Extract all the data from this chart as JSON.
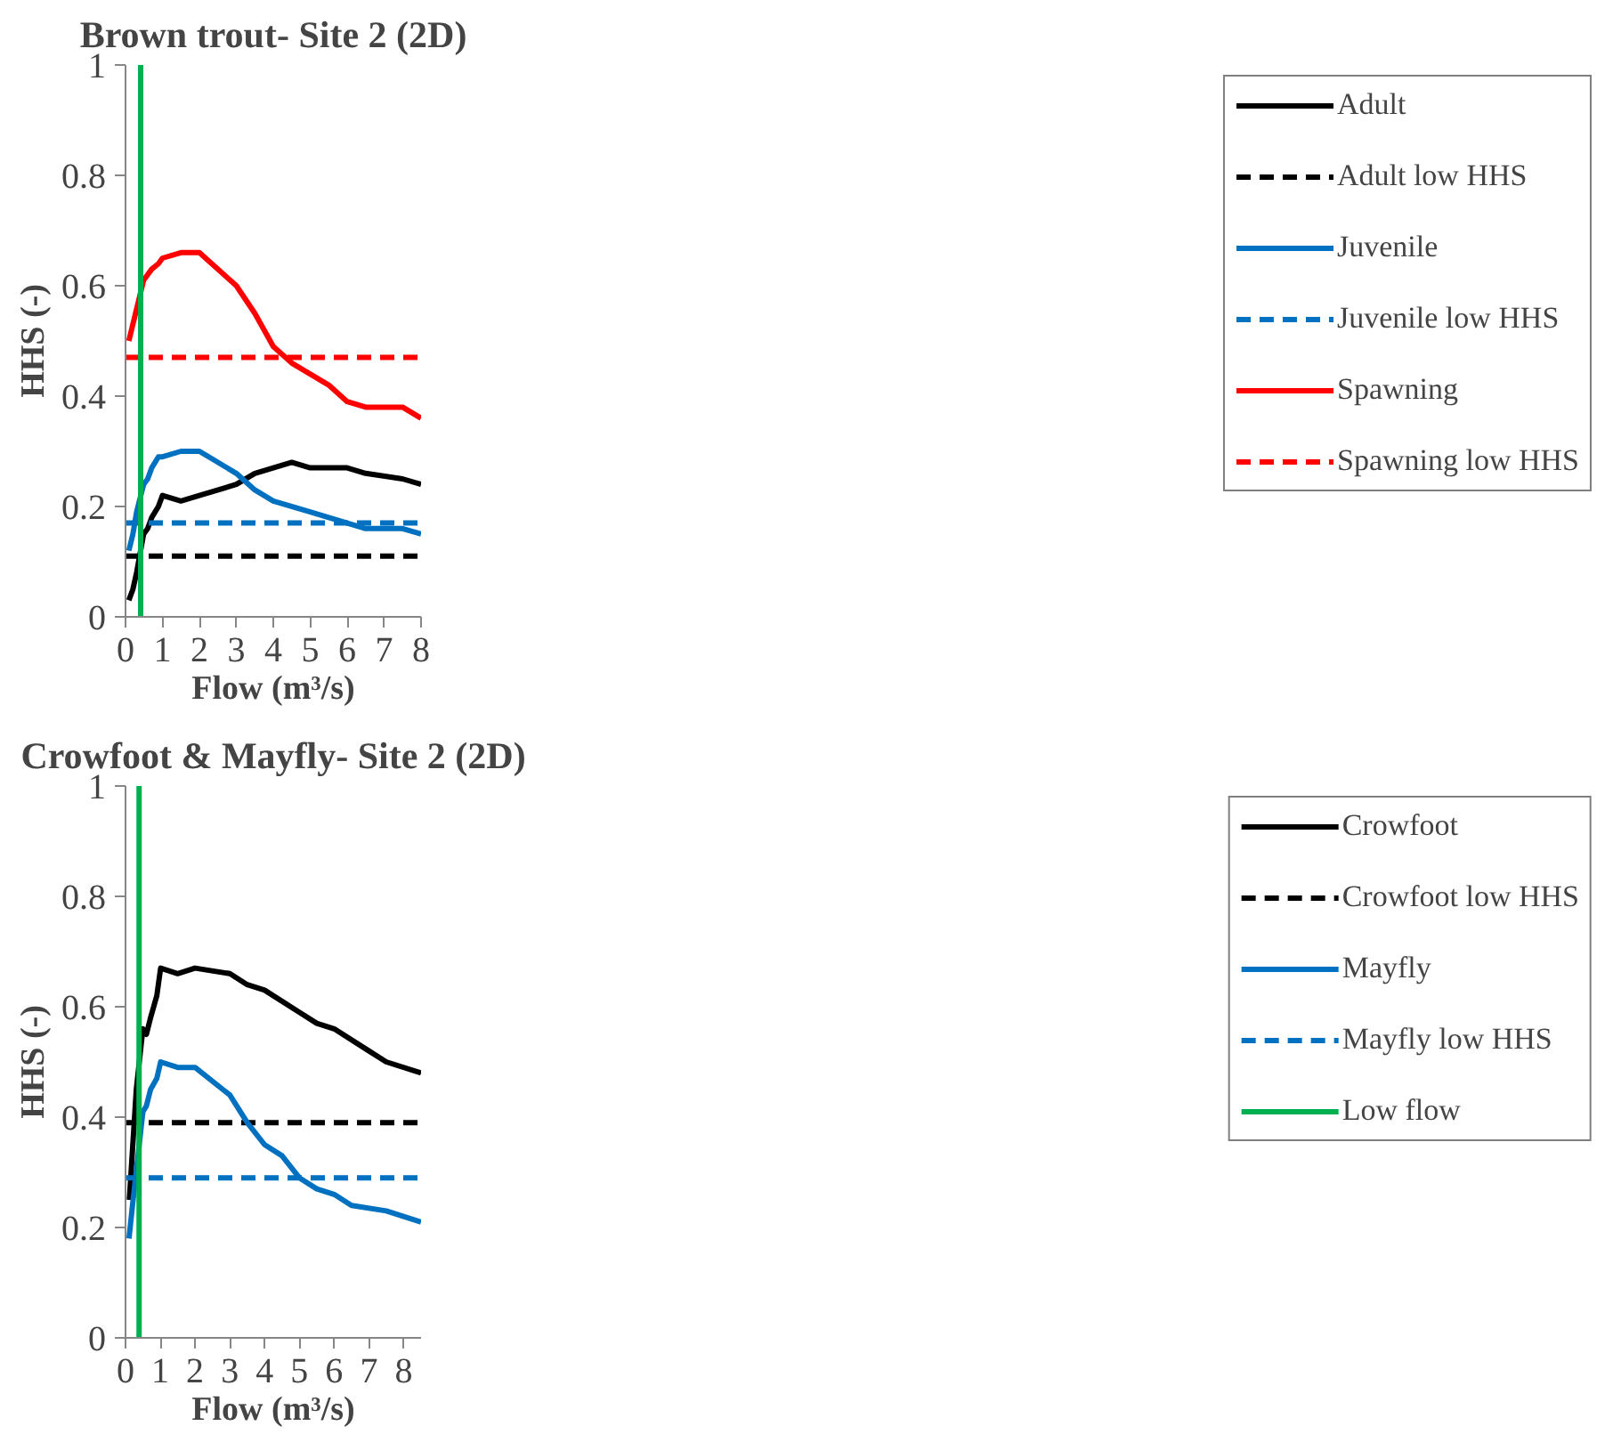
{
  "chart_data": [
    {
      "type": "line",
      "title": "Brown trout- Site 2 (2D)",
      "xlabel": "Flow (m³/s)",
      "ylabel": "HHS (-)",
      "xlim": [
        0,
        8
      ],
      "xticks": [
        0,
        1,
        2,
        3,
        4,
        5,
        6,
        7,
        8
      ],
      "ylim": [
        0,
        1
      ],
      "yticks": [
        0,
        0.2,
        0.4,
        0.6,
        0.8,
        1
      ],
      "grid": false,
      "legend": "right",
      "series": [
        {
          "name": "Adult",
          "color": "#000000",
          "line_style": "solid",
          "x": [
            0.09,
            0.2,
            0.3,
            0.49,
            0.6,
            0.71,
            0.89,
            1.0,
            1.5,
            2.0,
            3.0,
            3.5,
            4.0,
            4.5,
            5.0,
            6.0,
            6.5,
            7.5,
            8.0
          ],
          "values": [
            0.03,
            0.05,
            0.08,
            0.15,
            0.16,
            0.18,
            0.2,
            0.22,
            0.21,
            0.22,
            0.24,
            0.26,
            0.27,
            0.28,
            0.27,
            0.27,
            0.26,
            0.25,
            0.24
          ]
        },
        {
          "name": "Adult low HHS",
          "color": "#000000",
          "line_style": "dashed",
          "x": [
            0,
            8
          ],
          "values": [
            0.11,
            0.11
          ]
        },
        {
          "name": "Juvenile",
          "color": "#0070c0",
          "line_style": "solid",
          "x": [
            0.09,
            0.2,
            0.3,
            0.49,
            0.6,
            0.71,
            0.89,
            1.0,
            1.5,
            2.0,
            3.0,
            3.5,
            4.0,
            5.0,
            6.0,
            6.5,
            7.5,
            8.0
          ],
          "values": [
            0.12,
            0.15,
            0.19,
            0.24,
            0.25,
            0.27,
            0.29,
            0.29,
            0.3,
            0.3,
            0.26,
            0.23,
            0.21,
            0.19,
            0.17,
            0.16,
            0.16,
            0.15
          ]
        },
        {
          "name": "Juvenile low HHS",
          "color": "#0070c0",
          "line_style": "dashed",
          "x": [
            0,
            8
          ],
          "values": [
            0.17,
            0.17
          ]
        },
        {
          "name": "Spawning",
          "color": "#ff0000",
          "line_style": "solid",
          "x": [
            0.09,
            0.49,
            0.71,
            0.89,
            1.0,
            1.5,
            2.0,
            3.0,
            3.5,
            4.0,
            4.5,
            5.5,
            6.0,
            6.5,
            7.5,
            8.0
          ],
          "values": [
            0.5,
            0.61,
            0.63,
            0.64,
            0.65,
            0.66,
            0.66,
            0.6,
            0.55,
            0.49,
            0.46,
            0.42,
            0.39,
            0.38,
            0.38,
            0.36
          ]
        },
        {
          "name": "Spawning low HHS",
          "color": "#ff0000",
          "line_style": "dashed",
          "x": [
            0,
            8
          ],
          "values": [
            0.47,
            0.47
          ]
        },
        {
          "color": "#00b050",
          "line_style": "solid",
          "x": [
            0.41,
            0.41
          ],
          "values": [
            0,
            1
          ]
        }
      ]
    },
    {
      "type": "line",
      "title": "Crowfoot & Mayfly- Site 2 (2D)",
      "xlabel": "Flow (m³/s)",
      "ylabel": "HHS (-)",
      "xlim": [
        0,
        8.5
      ],
      "xticks": [
        0,
        1,
        2,
        3,
        4,
        5,
        6,
        7,
        8
      ],
      "ylim": [
        0,
        1
      ],
      "yticks": [
        0,
        0.2,
        0.4,
        0.6,
        0.8,
        1
      ],
      "grid": false,
      "legend": "right",
      "series": [
        {
          "name": "Crowfoot",
          "color": "#000000",
          "line_style": "solid",
          "x": [
            0.11,
            0.2,
            0.31,
            0.5,
            0.6,
            0.72,
            0.9,
            1.01,
            1.5,
            2.0,
            3.0,
            3.5,
            4.0,
            5.0,
            5.5,
            6.0,
            7.0,
            7.5,
            8.5
          ],
          "values": [
            0.25,
            0.34,
            0.45,
            0.56,
            0.55,
            0.58,
            0.62,
            0.67,
            0.66,
            0.67,
            0.66,
            0.64,
            0.63,
            0.59,
            0.57,
            0.56,
            0.52,
            0.5,
            0.48
          ]
        },
        {
          "name": "Crowfoot low HHS",
          "color": "#000000",
          "line_style": "dashed",
          "x": [
            0,
            8.5
          ],
          "values": [
            0.39,
            0.39
          ]
        },
        {
          "name": "Mayfly",
          "color": "#0070c0",
          "line_style": "solid",
          "x": [
            0.1,
            0.2,
            0.5,
            0.6,
            0.72,
            0.9,
            1.01,
            1.5,
            2.0,
            3.0,
            3.5,
            4.0,
            4.5,
            5.0,
            5.5,
            6.0,
            6.5,
            7.5,
            8.5
          ],
          "values": [
            0.18,
            0.24,
            0.41,
            0.42,
            0.45,
            0.47,
            0.5,
            0.49,
            0.49,
            0.44,
            0.39,
            0.35,
            0.33,
            0.29,
            0.27,
            0.26,
            0.24,
            0.23,
            0.21
          ]
        },
        {
          "name": "Mayfly low HHS",
          "color": "#0070c0",
          "line_style": "dashed",
          "x": [
            0,
            8.5
          ],
          "values": [
            0.29,
            0.29
          ]
        },
        {
          "name": "Low flow",
          "color": "#00b050",
          "line_style": "solid",
          "x": [
            0.39,
            0.39
          ],
          "values": [
            0,
            1
          ]
        }
      ]
    }
  ]
}
